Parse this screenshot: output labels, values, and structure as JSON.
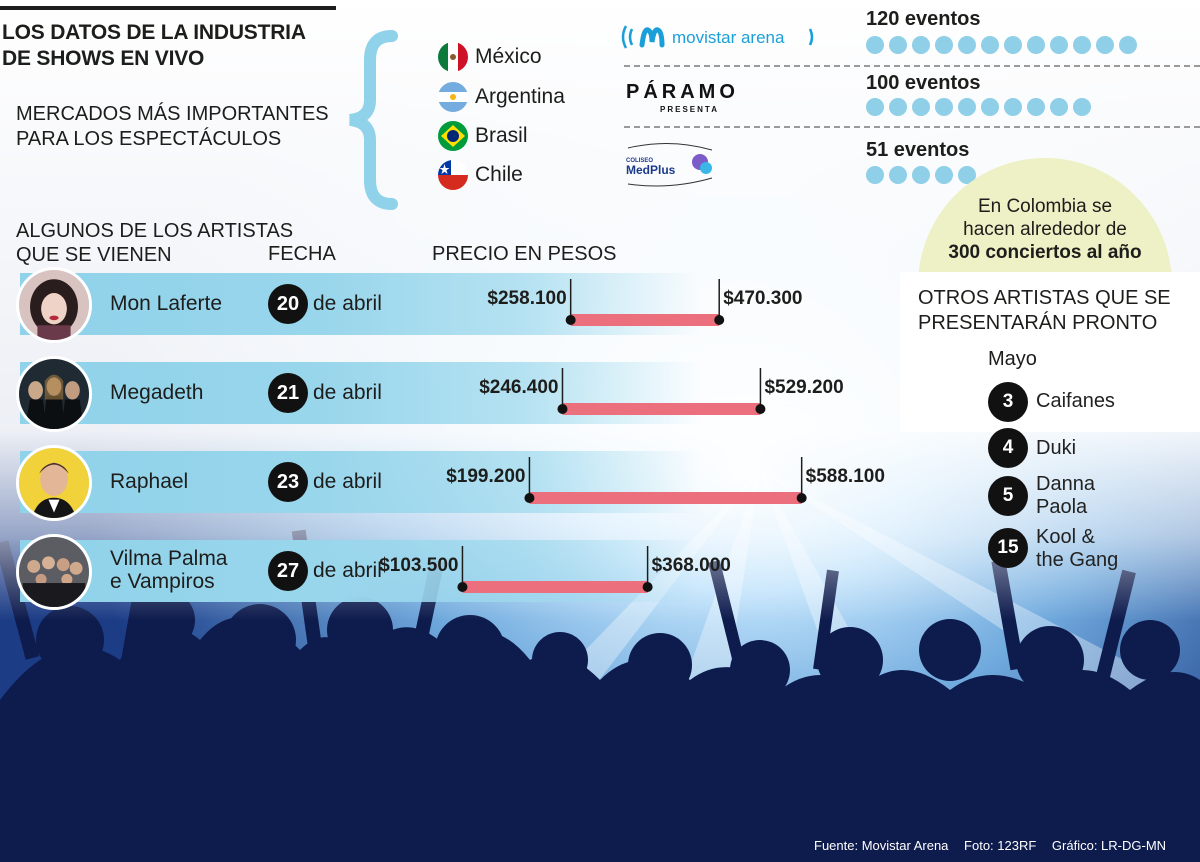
{
  "header": {
    "title_line1": "LOS DATOS DE LA INDUSTRIA",
    "title_line2": "DE SHOWS EN VIVO",
    "markets_line1": "MERCADOS MÁS IMPORTANTES",
    "markets_line2": "PARA LOS ESPECTÁCULOS"
  },
  "markets": [
    {
      "name": "México",
      "flag": "mexico-flag"
    },
    {
      "name": "Argentina",
      "flag": "argentina-flag"
    },
    {
      "name": "Brasil",
      "flag": "brazil-flag"
    },
    {
      "name": "Chile",
      "flag": "chile-flag"
    }
  ],
  "venues": [
    {
      "logo": "movistar-arena-logo",
      "logo_text": "movistar arena",
      "events_label": "120 eventos",
      "events": 120
    },
    {
      "logo": "paramo-presenta-logo",
      "logo_text": "PÁRAMO",
      "logo_sub": "PRESENTA",
      "events_label": "100 eventos",
      "events": 100
    },
    {
      "logo": "coliseo-medplus-logo",
      "logo_text": "MedPlus",
      "logo_sub": "COLISEO",
      "events_label": "51 eventos",
      "events": 51
    }
  ],
  "colombia_note": {
    "line1": "En Colombia se",
    "line2": "hacen alrededor de",
    "line3": "300 conciertos al año"
  },
  "artists_section": {
    "title_line1": "ALGUNOS DE LOS ARTISTAS",
    "title_line2": "QUE SE VIENEN",
    "date_header": "FECHA",
    "price_header": "PRECIO EN PESOS"
  },
  "artists": [
    {
      "name_line1": "Mon Laferte",
      "name_line2": "",
      "day": "20",
      "month": "de abril",
      "price_min_label": "$258.100",
      "price_max_label": "$470.300"
    },
    {
      "name_line1": "Megadeth",
      "name_line2": "",
      "day": "21",
      "month": "de abril",
      "price_min_label": "$246.400",
      "price_max_label": "$529.200"
    },
    {
      "name_line1": "Raphael",
      "name_line2": "",
      "day": "23",
      "month": "de abril",
      "price_min_label": "$199.200",
      "price_max_label": "$588.100"
    },
    {
      "name_line1": "Vilma Palma",
      "name_line2": "e Vampiros",
      "day": "27",
      "month": "de abril",
      "price_min_label": "$103.500",
      "price_max_label": "$368.000"
    }
  ],
  "chart_data": {
    "type": "range-bar",
    "title": "PRECIO EN PESOS",
    "categories": [
      "Mon Laferte",
      "Megadeth",
      "Raphael",
      "Vilma Palma e Vampiros"
    ],
    "series": [
      {
        "name": "min",
        "values": [
          258100,
          246400,
          199200,
          103500
        ]
      },
      {
        "name": "max",
        "values": [
          470300,
          529200,
          588100,
          368000
        ]
      }
    ],
    "bar_color": "#eb6f7c",
    "grid": false
  },
  "others": {
    "title_line1": "OTROS ARTISTAS QUE SE",
    "title_line2": "PRESENTARÁN PRONTO",
    "month": "Mayo",
    "items": [
      {
        "day": "3",
        "name_line1": "Caifanes",
        "name_line2": ""
      },
      {
        "day": "4",
        "name_line1": "Duki",
        "name_line2": ""
      },
      {
        "day": "5",
        "name_line1": "Danna",
        "name_line2": "Paola"
      },
      {
        "day": "15",
        "name_line1": "Kool &",
        "name_line2": "the Gang"
      }
    ]
  },
  "footer": {
    "source": "Fuente: Movistar Arena",
    "photo": "Foto: 123RF",
    "graphic": "Gráfico: LR-DG-MN"
  },
  "colors": {
    "band": "#8fd2ea",
    "dot": "#8fcfe8",
    "highlight": "#eef0c6",
    "crowd_dark": "#0c1a4a",
    "crowd_light": "#cfe9ff"
  }
}
